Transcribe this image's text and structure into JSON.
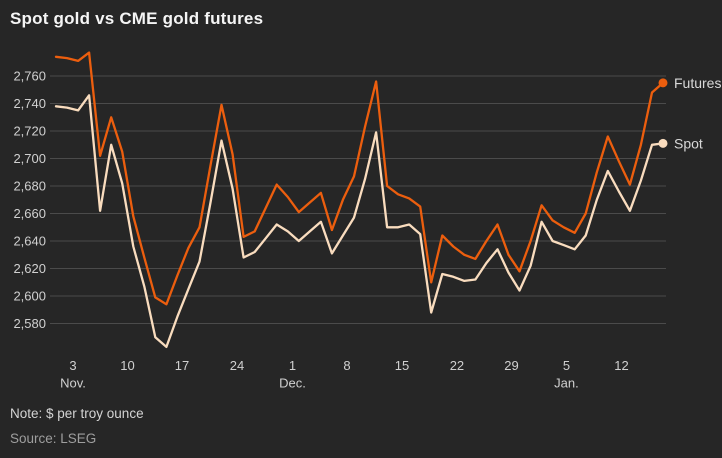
{
  "title": "Spot gold vs CME gold futures",
  "footer": {
    "note": "Note: $ per troy ounce",
    "source": "Source: LSEG"
  },
  "colors": {
    "background": "#262626",
    "title": "#f5f5f5",
    "grid": "#4b4b4b",
    "axis_label": "#d0d0d0",
    "legend_label": "#d8d8d8",
    "futures": "#ec5e0e",
    "spot": "#f9dcbe",
    "note": "#d4d4d4",
    "source": "#9e9e9e"
  },
  "chart_data": {
    "type": "line",
    "title": "Spot gold vs CME gold futures",
    "ylabel": "$ per troy ounce",
    "ylim": [
      2560,
      2782
    ],
    "grid": true,
    "legend_position": "right-end-of-lines",
    "yticks": [
      {
        "value": 2760,
        "label": "2,760"
      },
      {
        "value": 2740,
        "label": "2,740"
      },
      {
        "value": 2720,
        "label": "2,720"
      },
      {
        "value": 2700,
        "label": "2,700"
      },
      {
        "value": 2680,
        "label": "2,680"
      },
      {
        "value": 2660,
        "label": "2,660"
      },
      {
        "value": 2640,
        "label": "2,640"
      },
      {
        "value": 2620,
        "label": "2,620"
      },
      {
        "value": 2600,
        "label": "2,600"
      },
      {
        "value": 2580,
        "label": "2,580"
      }
    ],
    "xticks": [
      {
        "i": 1.54,
        "label": "3",
        "month": "Nov."
      },
      {
        "i": 6.48,
        "label": "10"
      },
      {
        "i": 11.42,
        "label": "17"
      },
      {
        "i": 16.4,
        "label": "24"
      },
      {
        "i": 21.43,
        "label": "1",
        "month": "Dec."
      },
      {
        "i": 26.37,
        "label": "8"
      },
      {
        "i": 31.35,
        "label": "15"
      },
      {
        "i": 36.33,
        "label": "22"
      },
      {
        "i": 41.27,
        "label": "29"
      },
      {
        "i": 46.25,
        "label": "5",
        "month": "Jan."
      },
      {
        "i": 51.24,
        "label": "12"
      }
    ],
    "series": [
      {
        "name": "Spot",
        "color": "#f9dcbe",
        "values": [
          2738,
          2737,
          2735,
          2746,
          2662,
          2710,
          2682,
          2636,
          2607,
          2570,
          2563,
          2585,
          2605,
          2625,
          2668,
          2713,
          2678,
          2628,
          2632,
          2642,
          2652,
          2647,
          2640,
          2647,
          2654,
          2631,
          2644,
          2657,
          2685,
          2719,
          2650,
          2650,
          2652,
          2645,
          2588,
          2616,
          2614,
          2611,
          2612,
          2624,
          2634,
          2617,
          2604,
          2622,
          2654,
          2640,
          2637,
          2634,
          2644,
          2670,
          2691,
          2676,
          2662,
          2684,
          2710,
          2711
        ]
      },
      {
        "name": "Futures",
        "color": "#ec5e0e",
        "values": [
          2774,
          2773,
          2771,
          2777,
          2702,
          2730,
          2705,
          2658,
          2628,
          2599,
          2594,
          2615,
          2635,
          2650,
          2695,
          2739,
          2703,
          2643,
          2647,
          2664,
          2681,
          2672,
          2661,
          2668,
          2675,
          2648,
          2670,
          2687,
          2723,
          2756,
          2680,
          2674,
          2671,
          2665,
          2610,
          2644,
          2636,
          2630,
          2627,
          2640,
          2652,
          2630,
          2618,
          2640,
          2666,
          2655,
          2650,
          2646,
          2660,
          2690,
          2716,
          2698,
          2681,
          2710,
          2748,
          2755
        ]
      }
    ]
  }
}
